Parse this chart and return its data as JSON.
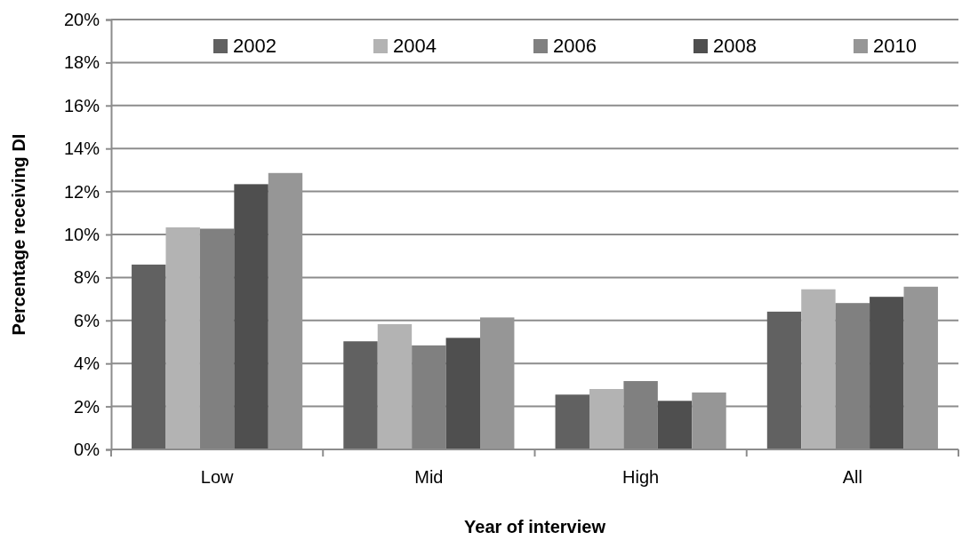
{
  "chart_data": {
    "type": "bar",
    "xlabel": "Year of interview",
    "ylabel": "Percentage receiving DI",
    "categories": [
      "Low",
      "Mid",
      "High",
      "All"
    ],
    "series": [
      {
        "name": "2002",
        "color": "#616161",
        "values": [
          8.6,
          5.03,
          2.55,
          6.41
        ]
      },
      {
        "name": "2004",
        "color": "#b3b3b3",
        "values": [
          10.33,
          5.83,
          2.81,
          7.45
        ]
      },
      {
        "name": "2006",
        "color": "#808080",
        "values": [
          10.27,
          4.84,
          3.18,
          6.81
        ]
      },
      {
        "name": "2008",
        "color": "#4f4f4f",
        "values": [
          12.34,
          5.19,
          2.26,
          7.1
        ]
      },
      {
        "name": "2010",
        "color": "#969696",
        "values": [
          12.86,
          6.14,
          2.65,
          7.57
        ]
      }
    ],
    "ylim": [
      0,
      20
    ],
    "yticks": [
      {
        "value": 0,
        "label": "0%"
      },
      {
        "value": 2,
        "label": "2%"
      },
      {
        "value": 4,
        "label": "4%"
      },
      {
        "value": 6,
        "label": "6%"
      },
      {
        "value": 8,
        "label": "8%"
      },
      {
        "value": 10,
        "label": "10%"
      },
      {
        "value": 12,
        "label": "12%"
      },
      {
        "value": 14,
        "label": "14%"
      },
      {
        "value": 16,
        "label": "16%"
      },
      {
        "value": 18,
        "label": "18%"
      },
      {
        "value": 20,
        "label": "20%"
      }
    ],
    "grid": "y",
    "legend": "top"
  }
}
